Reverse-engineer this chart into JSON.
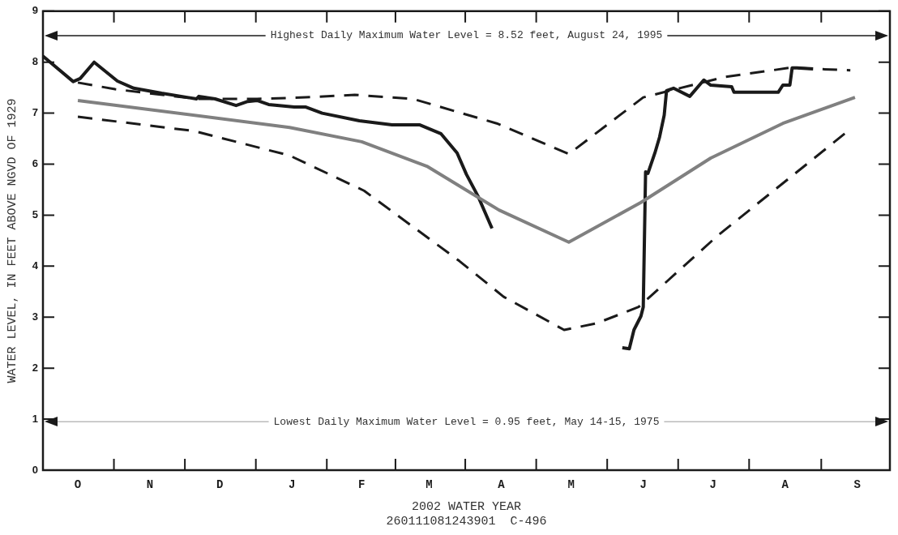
{
  "chart_data": {
    "type": "line",
    "xlabel": "2002 WATER YEAR",
    "ylabel": "WATER LEVEL, IN FEET ABOVE NGVD OF 1929",
    "annotations": [
      "260111081243901  C-496"
    ],
    "categories": [
      null,
      null,
      null,
      null,
      null,
      null,
      null,
      null,
      null,
      null,
      null,
      null,
      null,
      null,
      null,
      "O",
      null,
      null,
      null,
      null,
      null,
      null,
      null,
      null,
      null,
      null,
      null,
      null,
      null,
      null,
      null,
      null,
      null,
      null,
      null,
      null,
      null,
      null,
      null,
      null,
      null,
      null,
      null,
      null,
      null,
      null,
      "N",
      null,
      null,
      null,
      null,
      null,
      null,
      null,
      null,
      null,
      null,
      null,
      null,
      null,
      null,
      null,
      null,
      null,
      null,
      null,
      null,
      null,
      null,
      null,
      null,
      null,
      null,
      null,
      null,
      null,
      "D",
      null,
      null,
      null,
      null,
      null,
      null,
      null,
      null,
      null,
      null,
      null,
      null,
      null,
      null,
      null,
      null,
      null,
      null,
      null,
      null,
      null,
      null,
      null,
      null,
      null,
      null,
      null,
      null,
      null,
      null,
      "J",
      null,
      null,
      null,
      null,
      null,
      null,
      null,
      null,
      null,
      null,
      null,
      null,
      null,
      null,
      null,
      null,
      null,
      null,
      null,
      null,
      null,
      null,
      null,
      null,
      null,
      null,
      null,
      null,
      null,
      "F",
      null,
      null,
      null,
      null,
      null,
      null,
      null,
      null,
      null,
      null,
      null,
      null,
      null,
      null,
      null,
      null,
      null,
      null,
      null,
      null,
      null,
      null,
      null,
      null,
      null,
      null,
      null,
      null,
      "M",
      null,
      null,
      null,
      null,
      null,
      null,
      null,
      null,
      null,
      null,
      null,
      null,
      null,
      null,
      null,
      null,
      null,
      null,
      null,
      null,
      null,
      null,
      null,
      null,
      null,
      null,
      null,
      null,
      null,
      null,
      "A",
      null,
      null,
      null,
      null,
      null,
      null,
      null,
      null,
      null,
      null,
      null,
      null,
      null,
      null,
      null,
      null,
      null,
      null,
      null,
      null,
      null,
      null,
      null,
      null,
      null,
      null,
      null,
      null,
      null,
      "M",
      null,
      null,
      null,
      null,
      null,
      null,
      null,
      null,
      null,
      null,
      null,
      null,
      null,
      null,
      null,
      null,
      null,
      null,
      null,
      null,
      null,
      null,
      null,
      null,
      null,
      null,
      null,
      null,
      null,
      null,
      "J",
      null,
      null,
      null,
      null,
      null,
      null,
      null,
      null,
      null,
      null,
      null,
      null,
      null,
      null,
      null,
      null,
      null,
      null,
      null,
      null,
      null,
      null,
      null,
      null,
      null,
      null,
      null,
      null,
      null,
      "J",
      null,
      null,
      null,
      null,
      null,
      null,
      null,
      null,
      null,
      null,
      null,
      null,
      null,
      null,
      null,
      null,
      null,
      null,
      null,
      null,
      null,
      null,
      null,
      null,
      null,
      null,
      null,
      null,
      null,
      null,
      "A",
      null,
      null,
      null,
      null,
      null,
      null,
      null,
      null,
      null,
      null,
      null,
      null,
      null,
      null,
      null,
      null,
      null,
      null,
      null,
      null,
      null,
      null,
      null,
      null,
      null,
      null,
      null,
      null,
      null,
      null,
      "S",
      null,
      null,
      null,
      null,
      null,
      null,
      null,
      null,
      null,
      null,
      null,
      null,
      null,
      null
    ],
    "ylim": [
      0,
      9
    ],
    "yticks": [
      0,
      1,
      2,
      3,
      4,
      5,
      6,
      7,
      8,
      9
    ],
    "grid": false,
    "legend": false,
    "marker": "none",
    "ref_lines": [
      {
        "axis": "y",
        "value": 8.52,
        "label": "Highest Daily Maximum Water Level = 8.52 feet, August 24, 1995",
        "color": "#1a1a1a"
      },
      {
        "axis": "y",
        "value": 0.95,
        "label": "Lowest Daily Maximum Water Level = 0.95 feet, May 14-15, 1975",
        "color": "#bbbbbb"
      }
    ],
    "series": [
      {
        "color": "#808080",
        "line_style": "solid",
        "values": [
          null,
          null,
          null,
          null,
          null,
          null,
          null,
          null,
          null,
          null,
          null,
          null,
          null,
          null,
          null,
          7.25,
          null,
          null,
          null,
          null,
          null,
          null,
          null,
          null,
          null,
          null,
          null,
          null,
          null,
          null,
          null,
          null,
          null,
          null,
          null,
          null,
          null,
          null,
          null,
          null,
          null,
          null,
          null,
          null,
          null,
          null,
          null,
          null,
          null,
          null,
          null,
          null,
          null,
          null,
          null,
          null,
          null,
          null,
          null,
          null,
          null,
          null,
          null,
          null,
          null,
          null,
          null,
          null,
          null,
          null,
          null,
          null,
          null,
          null,
          null,
          null,
          null,
          null,
          null,
          null,
          null,
          null,
          null,
          null,
          null,
          null,
          null,
          null,
          null,
          null,
          null,
          null,
          null,
          null,
          null,
          null,
          null,
          null,
          null,
          null,
          null,
          null,
          null,
          null,
          null,
          null,
          6.72,
          null,
          null,
          null,
          null,
          null,
          null,
          null,
          null,
          null,
          null,
          null,
          null,
          null,
          null,
          null,
          null,
          null,
          null,
          null,
          null,
          null,
          null,
          null,
          null,
          null,
          null,
          null,
          null,
          null,
          null,
          6.44,
          null,
          null,
          null,
          null,
          null,
          null,
          null,
          null,
          null,
          null,
          null,
          null,
          null,
          null,
          null,
          null,
          null,
          null,
          null,
          null,
          null,
          null,
          null,
          null,
          null,
          null,
          null,
          5.96,
          null,
          null,
          null,
          null,
          null,
          null,
          null,
          null,
          null,
          null,
          null,
          null,
          null,
          null,
          null,
          null,
          null,
          null,
          null,
          null,
          null,
          null,
          null,
          null,
          null,
          null,
          null,
          null,
          null,
          null,
          5.1,
          null,
          null,
          null,
          null,
          null,
          null,
          null,
          null,
          null,
          null,
          null,
          null,
          null,
          null,
          null,
          null,
          null,
          null,
          null,
          null,
          null,
          null,
          null,
          null,
          null,
          null,
          null,
          null,
          null,
          4.47,
          null,
          null,
          null,
          null,
          null,
          null,
          null,
          null,
          null,
          null,
          null,
          null,
          null,
          null,
          null,
          null,
          null,
          null,
          null,
          null,
          null,
          null,
          null,
          null,
          null,
          null,
          null,
          null,
          null,
          null,
          5.25,
          null,
          null,
          null,
          null,
          null,
          null,
          null,
          null,
          null,
          null,
          null,
          null,
          null,
          null,
          null,
          null,
          null,
          null,
          null,
          null,
          null,
          null,
          null,
          null,
          null,
          null,
          null,
          null,
          null,
          6.12,
          null,
          null,
          null,
          null,
          null,
          null,
          null,
          null,
          null,
          null,
          null,
          null,
          null,
          null,
          null,
          null,
          null,
          null,
          null,
          null,
          null,
          null,
          null,
          null,
          null,
          null,
          null,
          null,
          null,
          null,
          6.8,
          null,
          null,
          null,
          null,
          null,
          null,
          null,
          null,
          null,
          null,
          null,
          null,
          null,
          null,
          null,
          null,
          null,
          null,
          null,
          null,
          null,
          null,
          null,
          null,
          null,
          null,
          null,
          null,
          null,
          null,
          7.31,
          null,
          null,
          null,
          null,
          null,
          null,
          null,
          null,
          null,
          null,
          null,
          null,
          null,
          null,
          null
        ]
      },
      {
        "color": "#1a1a1a",
        "line_style": "dashed",
        "values": [
          null,
          null,
          null,
          null,
          null,
          null,
          null,
          null,
          null,
          null,
          null,
          null,
          null,
          null,
          null,
          7.6,
          null,
          null,
          null,
          null,
          null,
          null,
          null,
          null,
          null,
          null,
          null,
          null,
          null,
          null,
          null,
          7.47,
          null,
          null,
          null,
          null,
          null,
          null,
          null,
          null,
          null,
          null,
          null,
          null,
          null,
          null,
          null,
          null,
          null,
          null,
          null,
          null,
          null,
          null,
          null,
          null,
          null,
          null,
          null,
          null,
          null,
          null,
          null,
          null,
          null,
          null,
          7.28,
          null,
          null,
          null,
          null,
          null,
          null,
          null,
          null,
          null,
          null,
          null,
          null,
          null,
          null,
          null,
          null,
          null,
          null,
          null,
          null,
          null,
          null,
          null,
          null,
          null,
          7.28,
          null,
          null,
          null,
          null,
          null,
          null,
          null,
          null,
          null,
          null,
          null,
          null,
          null,
          null,
          null,
          null,
          null,
          null,
          null,
          null,
          7.31,
          null,
          null,
          null,
          null,
          null,
          null,
          null,
          null,
          null,
          null,
          null,
          null,
          null,
          null,
          null,
          null,
          null,
          null,
          null,
          null,
          7.36,
          null,
          null,
          null,
          null,
          null,
          null,
          null,
          null,
          null,
          null,
          null,
          null,
          null,
          null,
          null,
          null,
          null,
          null,
          null,
          null,
          null,
          null,
          null,
          null,
          7.28,
          null,
          null,
          null,
          null,
          null,
          null,
          null,
          null,
          null,
          null,
          null,
          null,
          null,
          null,
          null,
          null,
          null,
          null,
          null,
          null,
          null,
          null,
          null,
          null,
          null,
          null,
          null,
          null,
          null,
          null,
          null,
          null,
          null,
          null,
          null,
          6.8,
          null,
          null,
          null,
          null,
          null,
          null,
          null,
          null,
          null,
          null,
          null,
          null,
          null,
          null,
          null,
          null,
          null,
          null,
          null,
          null,
          null,
          null,
          null,
          null,
          null,
          null,
          null,
          null,
          null,
          null,
          6.2,
          null,
          null,
          null,
          null,
          null,
          null,
          null,
          null,
          null,
          null,
          null,
          null,
          null,
          null,
          null,
          null,
          null,
          null,
          null,
          null,
          null,
          null,
          null,
          null,
          null,
          null,
          null,
          null,
          null,
          null,
          null,
          7.31,
          null,
          null,
          null,
          null,
          null,
          null,
          null,
          null,
          null,
          null,
          null,
          null,
          null,
          null,
          null,
          null,
          null,
          null,
          null,
          null,
          null,
          null,
          null,
          null,
          null,
          null,
          null,
          null,
          null,
          null,
          null,
          null,
          null,
          null,
          7.71,
          null,
          null,
          null,
          null,
          null,
          null,
          null,
          null,
          null,
          null,
          null,
          null,
          null,
          null,
          null,
          null,
          null,
          null,
          null,
          null,
          null,
          null,
          null,
          null,
          null,
          null,
          null,
          7.89,
          null,
          null,
          null,
          null,
          null,
          null,
          null,
          null,
          null,
          null,
          null,
          null,
          null,
          null,
          null,
          null,
          null,
          null,
          null,
          null,
          null,
          null,
          null,
          null,
          null,
          7.84,
          null,
          null,
          null,
          null,
          null,
          null,
          null,
          null,
          null,
          null,
          null,
          null,
          null,
          null,
          null,
          null,
          null
        ]
      },
      {
        "color": "#1a1a1a",
        "line_style": "dashed",
        "values": [
          null,
          null,
          null,
          null,
          null,
          null,
          null,
          null,
          null,
          null,
          null,
          null,
          null,
          null,
          null,
          6.93,
          null,
          null,
          null,
          null,
          null,
          null,
          null,
          null,
          null,
          null,
          null,
          null,
          null,
          null,
          null,
          null,
          null,
          null,
          null,
          null,
          null,
          null,
          null,
          null,
          null,
          null,
          null,
          null,
          null,
          null,
          null,
          null,
          null,
          null,
          null,
          null,
          null,
          null,
          null,
          null,
          null,
          null,
          null,
          null,
          null,
          null,
          null,
          null,
          null,
          6.65,
          null,
          null,
          null,
          null,
          null,
          null,
          null,
          null,
          null,
          null,
          null,
          null,
          null,
          null,
          null,
          null,
          null,
          null,
          null,
          null,
          null,
          null,
          null,
          null,
          null,
          null,
          null,
          null,
          null,
          null,
          null,
          null,
          null,
          null,
          null,
          null,
          null,
          null,
          null,
          null,
          6.17,
          null,
          null,
          null,
          null,
          null,
          null,
          null,
          null,
          null,
          null,
          null,
          null,
          null,
          null,
          null,
          null,
          null,
          null,
          null,
          null,
          null,
          null,
          null,
          null,
          null,
          null,
          null,
          null,
          null,
          null,
          null,
          5.48,
          null,
          null,
          null,
          null,
          null,
          null,
          null,
          null,
          null,
          null,
          null,
          null,
          null,
          null,
          null,
          null,
          null,
          null,
          null,
          null,
          null,
          null,
          null,
          null,
          null,
          null,
          null,
          null,
          null,
          null,
          null,
          null,
          null,
          null,
          null,
          null,
          null,
          null,
          null,
          null,
          4.1,
          null,
          null,
          null,
          null,
          null,
          null,
          null,
          null,
          null,
          null,
          null,
          null,
          null,
          null,
          null,
          null,
          null,
          null,
          3.4,
          null,
          null,
          null,
          null,
          null,
          null,
          null,
          null,
          null,
          null,
          null,
          null,
          null,
          null,
          null,
          null,
          null,
          null,
          null,
          null,
          null,
          null,
          null,
          null,
          null,
          2.75,
          null,
          null,
          null,
          null,
          null,
          null,
          null,
          null,
          null,
          null,
          null,
          null,
          null,
          2.88,
          null,
          null,
          null,
          null,
          null,
          null,
          null,
          null,
          null,
          null,
          null,
          null,
          null,
          null,
          null,
          null,
          null,
          3.2,
          null,
          null,
          null,
          null,
          null,
          null,
          null,
          null,
          null,
          null,
          null,
          null,
          null,
          null,
          null,
          null,
          null,
          null,
          null,
          null,
          null,
          null,
          null,
          null,
          null,
          null,
          null,
          null,
          null,
          null,
          null,
          null,
          null,
          4.6,
          null,
          null,
          null,
          null,
          null,
          null,
          null,
          null,
          null,
          null,
          null,
          null,
          null,
          null,
          null,
          null,
          null,
          null,
          null,
          null,
          null,
          null,
          null,
          null,
          null,
          null,
          null,
          null,
          null,
          null,
          null,
          null,
          null,
          null,
          null,
          null,
          null,
          null,
          null,
          null,
          null,
          null,
          null,
          null,
          null,
          null,
          null,
          null,
          null,
          null,
          null,
          null,
          null,
          null,
          null,
          6.65,
          null,
          null,
          null,
          null,
          null,
          null,
          null,
          null,
          null,
          null,
          null,
          null,
          null,
          null,
          null,
          null,
          null,
          null
        ]
      },
      {
        "color": "#1a1a1a",
        "line_style": "solid",
        "values": [
          8.12,
          null,
          null,
          null,
          null,
          null,
          null,
          null,
          null,
          null,
          null,
          null,
          null,
          7.62,
          null,
          null,
          7.68,
          null,
          null,
          null,
          null,
          null,
          8.0,
          null,
          null,
          null,
          null,
          null,
          null,
          null,
          null,
          null,
          7.63,
          null,
          null,
          null,
          null,
          null,
          null,
          7.49,
          null,
          null,
          null,
          null,
          null,
          null,
          null,
          null,
          null,
          null,
          null,
          7.39,
          null,
          null,
          null,
          null,
          null,
          null,
          null,
          null,
          null,
          null,
          7.31,
          null,
          null,
          null,
          7.28,
          7.33,
          null,
          null,
          null,
          null,
          null,
          null,
          7.28,
          null,
          null,
          null,
          null,
          null,
          null,
          null,
          null,
          7.15,
          null,
          null,
          null,
          null,
          7.23,
          null,
          null,
          null,
          7.25,
          null,
          null,
          null,
          null,
          7.17,
          null,
          null,
          null,
          null,
          null,
          null,
          null,
          null,
          null,
          null,
          7.12,
          null,
          null,
          null,
          null,
          7.12,
          null,
          null,
          null,
          null,
          null,
          null,
          7.0,
          null,
          null,
          null,
          null,
          null,
          null,
          null,
          null,
          null,
          null,
          null,
          null,
          null,
          null,
          null,
          6.85,
          null,
          null,
          null,
          null,
          null,
          null,
          null,
          null,
          null,
          null,
          null,
          null,
          null,
          6.77,
          null,
          null,
          null,
          null,
          null,
          null,
          null,
          null,
          null,
          null,
          null,
          6.77,
          null,
          null,
          null,
          null,
          null,
          null,
          null,
          null,
          6.6,
          null,
          null,
          null,
          null,
          null,
          null,
          6.22,
          null,
          null,
          null,
          5.8,
          null,
          null,
          null,
          null,
          5.37,
          null,
          null,
          null,
          null,
          null,
          4.74,
          null,
          null,
          null,
          null,
          null,
          null,
          null,
          null,
          null,
          null,
          null,
          null,
          null,
          null,
          null,
          null,
          null,
          null,
          null,
          null,
          null,
          null,
          null,
          null,
          null,
          null,
          null,
          null,
          null,
          null,
          null,
          null,
          null,
          null,
          null,
          null,
          null,
          null,
          null,
          null,
          null,
          null,
          null,
          null,
          null,
          null,
          null,
          null,
          null,
          null,
          null,
          null,
          null,
          null,
          null,
          null,
          null,
          null,
          null,
          null,
          null,
          null,
          null,
          null,
          null,
          null,
          null,
          null,
          null,
          null,
          null,
          null,
          null,
          null,
          null,
          null,
          null,
          null,
          null,
          null,
          null,
          null,
          null,
          null,
          null,
          null,
          null,
          null,
          null,
          null,
          null,
          null,
          null,
          null,
          null,
          null,
          null,
          null,
          null,
          null,
          null,
          null,
          null,
          null,
          null,
          null,
          null,
          null,
          null,
          null,
          null,
          null,
          null,
          null,
          null,
          null,
          null,
          null,
          null,
          null,
          null,
          null,
          null,
          null,
          null,
          null,
          null,
          null,
          null,
          null,
          null,
          null,
          null,
          null,
          null,
          null,
          null,
          null,
          null,
          null,
          null,
          null,
          null,
          null,
          null,
          null,
          null,
          null,
          null,
          null,
          null,
          null,
          null,
          null,
          null,
          null,
          null,
          null,
          null,
          null,
          null,
          null,
          null,
          null,
          null,
          null,
          null,
          null,
          null,
          null,
          null
        ]
      },
      {
        "color": "#1a1a1a",
        "line_style": "solid",
        "values": [
          null,
          null,
          null,
          null,
          null,
          null,
          null,
          null,
          null,
          null,
          null,
          null,
          null,
          null,
          null,
          null,
          null,
          null,
          null,
          null,
          null,
          null,
          null,
          null,
          null,
          null,
          null,
          null,
          null,
          null,
          null,
          null,
          null,
          null,
          null,
          null,
          null,
          null,
          null,
          null,
          null,
          null,
          null,
          null,
          null,
          null,
          null,
          null,
          null,
          null,
          null,
          null,
          null,
          null,
          null,
          null,
          null,
          null,
          null,
          null,
          null,
          null,
          null,
          null,
          null,
          null,
          null,
          null,
          null,
          null,
          null,
          null,
          null,
          null,
          null,
          null,
          null,
          null,
          null,
          null,
          null,
          null,
          null,
          null,
          null,
          null,
          null,
          null,
          null,
          null,
          null,
          null,
          null,
          null,
          null,
          null,
          null,
          null,
          null,
          null,
          null,
          null,
          null,
          null,
          null,
          null,
          null,
          null,
          null,
          null,
          null,
          null,
          null,
          null,
          null,
          null,
          null,
          null,
          null,
          null,
          null,
          null,
          null,
          null,
          null,
          null,
          null,
          null,
          null,
          null,
          null,
          null,
          null,
          null,
          null,
          null,
          null,
          null,
          null,
          null,
          null,
          null,
          null,
          null,
          null,
          null,
          null,
          null,
          null,
          null,
          null,
          null,
          null,
          null,
          null,
          null,
          null,
          null,
          null,
          null,
          null,
          null,
          null,
          null,
          null,
          null,
          null,
          null,
          null,
          null,
          null,
          null,
          null,
          null,
          null,
          null,
          null,
          null,
          null,
          null,
          null,
          null,
          null,
          null,
          null,
          null,
          null,
          null,
          null,
          null,
          null,
          null,
          null,
          null,
          null,
          null,
          null,
          null,
          null,
          null,
          null,
          null,
          null,
          null,
          null,
          null,
          null,
          null,
          null,
          null,
          null,
          null,
          null,
          null,
          null,
          null,
          null,
          null,
          null,
          null,
          null,
          null,
          null,
          null,
          null,
          null,
          null,
          null,
          null,
          null,
          null,
          null,
          null,
          null,
          null,
          null,
          null,
          null,
          null,
          null,
          null,
          null,
          null,
          null,
          null,
          null,
          null,
          null,
          null,
          2.4,
          null,
          null,
          2.38,
          null,
          2.75,
          null,
          null,
          3.02,
          3.2,
          5.85,
          5.82,
          null,
          null,
          6.22,
          null,
          6.53,
          null,
          6.96,
          7.44,
          null,
          null,
          7.49,
          null,
          null,
          null,
          null,
          null,
          null,
          7.33,
          null,
          null,
          null,
          null,
          null,
          7.65,
          null,
          null,
          7.55,
          null,
          null,
          null,
          null,
          null,
          null,
          null,
          null,
          7.52,
          7.41,
          null,
          null,
          null,
          null,
          null,
          null,
          null,
          null,
          null,
          null,
          null,
          null,
          null,
          null,
          null,
          null,
          null,
          null,
          7.41,
          null,
          7.55,
          null,
          null,
          7.55,
          7.89,
          null,
          7.89,
          null,
          null,
          null,
          null,
          null,
          null,
          7.87,
          null,
          null,
          null,
          null,
          null,
          null,
          null,
          null,
          null,
          null,
          null,
          null,
          null,
          null,
          null,
          null,
          null,
          null,
          null,
          null,
          null,
          null,
          null,
          null,
          null,
          null,
          null,
          null,
          null,
          null,
          null,
          null,
          null
        ]
      }
    ]
  }
}
